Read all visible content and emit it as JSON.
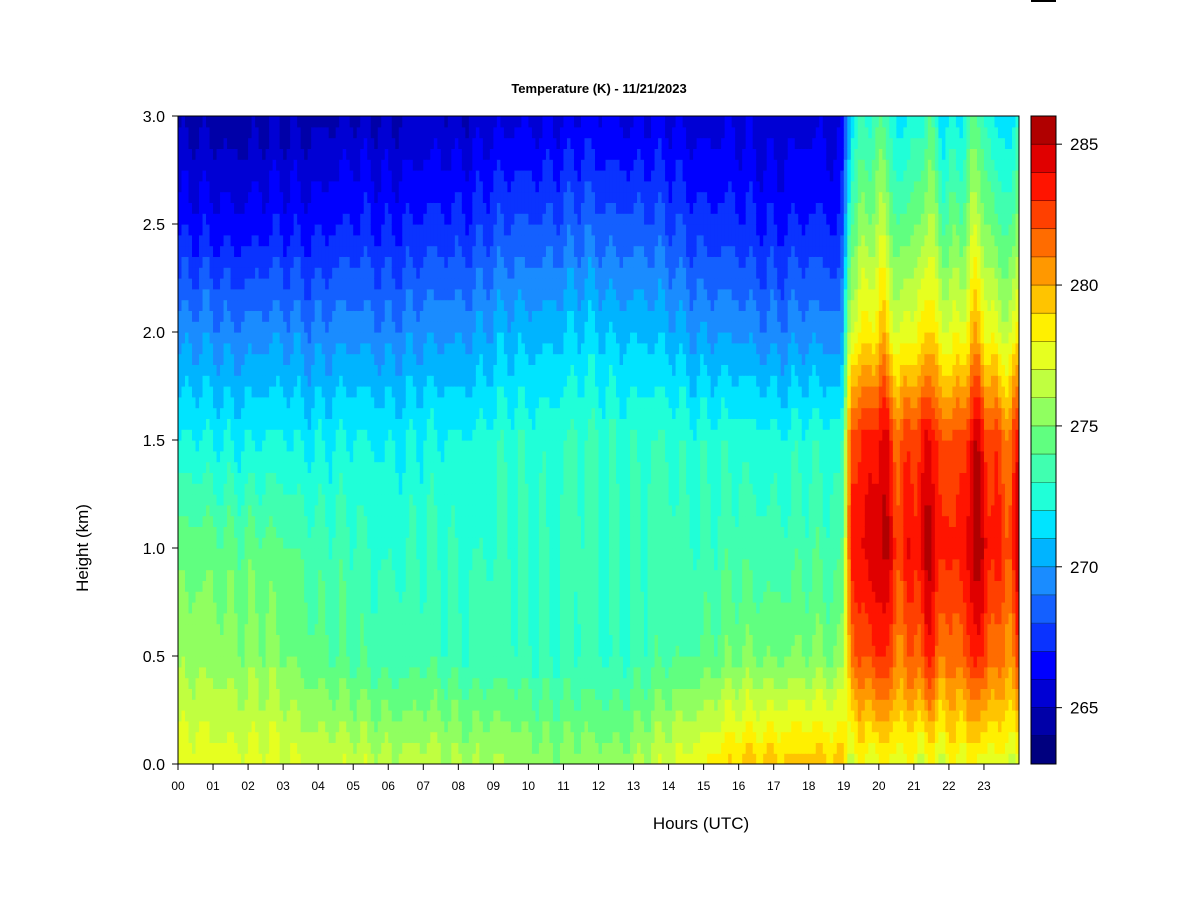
{
  "chart_data": {
    "type": "heatmap",
    "title": "Temperature (K) - 11/21/2023",
    "xlabel": "Hours (UTC)",
    "ylabel": "Height (km)",
    "xlim": [
      0,
      24
    ],
    "ylim": [
      0.0,
      3.0
    ],
    "x_ticks": [
      0,
      1,
      2,
      3,
      4,
      5,
      6,
      7,
      8,
      9,
      10,
      11,
      12,
      13,
      14,
      15,
      16,
      17,
      18,
      19,
      20,
      21,
      22,
      23
    ],
    "x_tick_labels": [
      "00",
      "01",
      "02",
      "03",
      "04",
      "05",
      "06",
      "07",
      "08",
      "09",
      "10",
      "11",
      "12",
      "13",
      "14",
      "15",
      "16",
      "17",
      "18",
      "19",
      "20",
      "21",
      "22",
      "23"
    ],
    "y_ticks": [
      0.0,
      0.5,
      1.0,
      1.5,
      2.0,
      2.5,
      3.0
    ],
    "y_tick_labels": [
      "0.0",
      "0.5",
      "1.0",
      "1.5",
      "2.0",
      "2.5",
      "3.0"
    ],
    "colorbar": {
      "range": [
        263,
        286
      ],
      "levels": [
        263,
        264,
        265,
        266,
        267,
        268,
        269,
        270,
        271,
        272,
        273,
        274,
        275,
        276,
        277,
        278,
        279,
        280,
        281,
        282,
        283,
        284,
        285,
        286
      ],
      "tick_values": [
        265,
        270,
        275,
        280,
        285
      ],
      "tick_labels": [
        "265",
        "270",
        "275",
        "280",
        "285"
      ],
      "colors": [
        "#00007F",
        "#0000A8",
        "#0000D4",
        "#0000FF",
        "#0A33FF",
        "#1460FF",
        "#1A8CFF",
        "#00B4FF",
        "#00E4FF",
        "#20FFD8",
        "#40FFB0",
        "#60FF80",
        "#90FF60",
        "#C0FF40",
        "#E6FF20",
        "#FFF000",
        "#FFC400",
        "#FF9800",
        "#FF6C00",
        "#FF4000",
        "#FF1400",
        "#E00000",
        "#B00000",
        "#800000"
      ]
    },
    "grid": false,
    "legend": "colorbar-right",
    "profile_periods": [
      {
        "hours": "00-03",
        "surface_K": 277.5,
        "at_0.5km_K": 275.5,
        "at_1.0km_K": 274.5,
        "at_1.5km_K": 272.0,
        "at_2.0km_K": 269.5,
        "at_2.5km_K": 266.5,
        "at_3.0km_K": 264.5
      },
      {
        "hours": "03-09",
        "surface_K": 276.5,
        "at_0.5km_K": 273.5,
        "at_1.0km_K": 273.0,
        "at_1.5km_K": 272.0,
        "at_2.0km_K": 269.5,
        "at_2.5km_K": 267.0,
        "at_3.0km_K": 265.0
      },
      {
        "hours": "09-15",
        "surface_K": 275.5,
        "at_0.5km_K": 273.0,
        "at_1.0km_K": 273.0,
        "at_1.5km_K": 273.0,
        "at_2.0km_K": 271.0,
        "at_2.5km_K": 268.5,
        "at_3.0km_K": 266.0
      },
      {
        "hours": "15-19",
        "surface_K": 279.5,
        "at_0.5km_K": 275.0,
        "at_1.0km_K": 273.5,
        "at_1.5km_K": 272.5,
        "at_2.0km_K": 269.5,
        "at_2.5km_K": 267.0,
        "at_3.0km_K": 265.5
      },
      {
        "hours": "19-24",
        "surface_K": 277.5,
        "at_0.5km_K": 282.0,
        "at_1.0km_K": 284.0,
        "at_1.5km_K": 283.0,
        "at_2.0km_K": 278.0,
        "at_2.5km_K": 275.0,
        "at_3.0km_K": 272.5
      }
    ]
  }
}
